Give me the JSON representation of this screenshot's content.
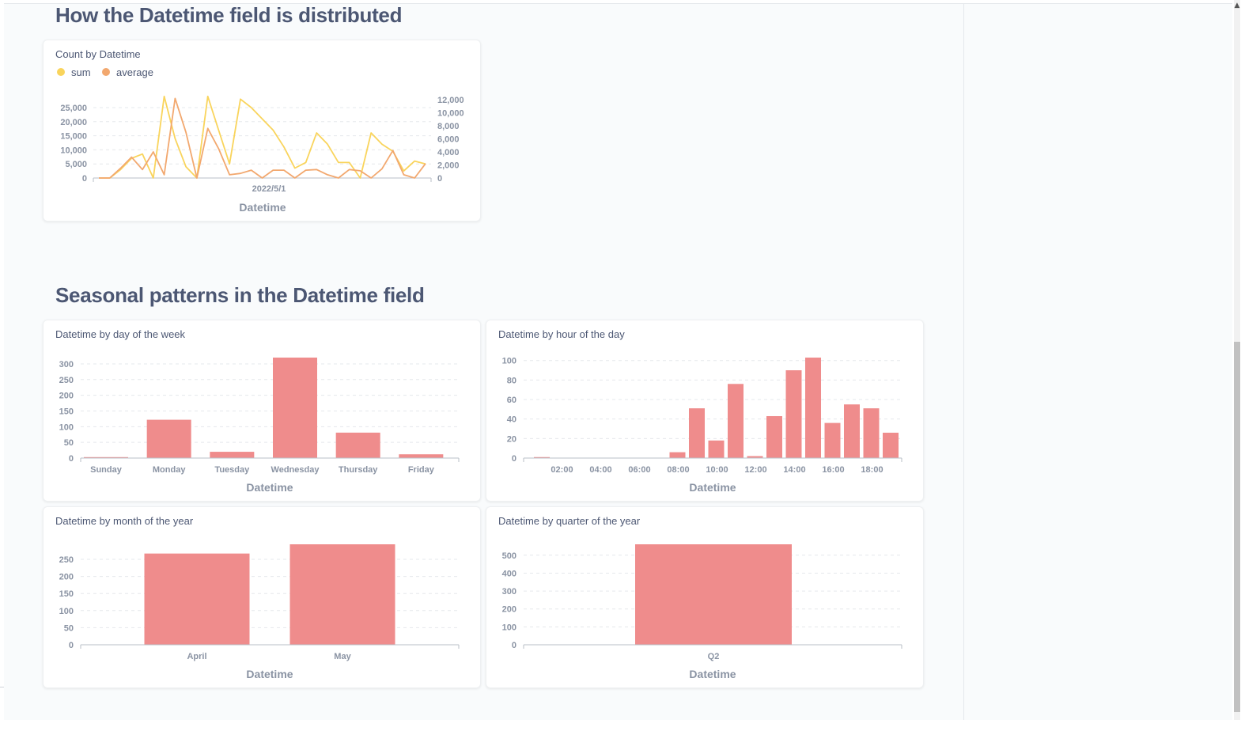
{
  "colors": {
    "bar": "#ef8c8c",
    "sum": "#f9d45c",
    "average": "#f2a86f"
  },
  "sections": {
    "distribution_title": "How the Datetime field is distributed",
    "seasonal_title": "Seasonal patterns in the Datetime field"
  },
  "cards": {
    "count_by_datetime": {
      "title": "Count by Datetime",
      "legend": [
        "sum",
        "average"
      ],
      "left_ticks": [
        "0",
        "5,000",
        "10,000",
        "15,000",
        "20,000",
        "25,000"
      ],
      "right_ticks": [
        "0",
        "2,000",
        "4,000",
        "6,000",
        "8,000",
        "10,000",
        "12,000"
      ],
      "x_tick": "2022/5/1",
      "x_title": "Datetime"
    },
    "day_of_week": {
      "title": "Datetime by day of the week",
      "y_ticks": [
        "0",
        "50",
        "100",
        "150",
        "200",
        "250",
        "300"
      ],
      "x_title": "Datetime"
    },
    "hour_of_day": {
      "title": "Datetime by hour of the day",
      "y_ticks": [
        "0",
        "20",
        "40",
        "60",
        "80",
        "100"
      ],
      "x_title": "Datetime"
    },
    "month_of_year": {
      "title": "Datetime by month of the year",
      "y_ticks": [
        "0",
        "50",
        "100",
        "150",
        "200",
        "250"
      ],
      "x_title": "Datetime"
    },
    "quarter_of_year": {
      "title": "Datetime by quarter of the year",
      "y_ticks": [
        "0",
        "100",
        "200",
        "300",
        "400",
        "500"
      ],
      "x_title": "Datetime"
    }
  },
  "chart_data": [
    {
      "type": "line",
      "title": "Count by Datetime",
      "xlabel": "Datetime",
      "x_tick_labels": [
        "2022/5/1"
      ],
      "series": [
        {
          "name": "sum",
          "axis": "left",
          "values": [
            0,
            0,
            3000,
            7000,
            8500,
            0,
            29000,
            14000,
            4000,
            0,
            29000,
            17000,
            5000,
            28000,
            25000,
            21000,
            17000,
            11000,
            3500,
            5500,
            16000,
            12000,
            5500,
            5500,
            0,
            16000,
            12000,
            9500,
            2500,
            6000,
            5000
          ]
        },
        {
          "name": "average",
          "axis": "right",
          "values": [
            0,
            0,
            1500,
            3200,
            1300,
            4000,
            500,
            12200,
            7000,
            0,
            7600,
            4500,
            500,
            700,
            1200,
            0,
            1200,
            1200,
            0,
            1200,
            1300,
            500,
            0,
            1300,
            1100,
            0,
            1400,
            4200,
            500,
            0,
            2200
          ]
        }
      ],
      "ylim_left": [
        0,
        25000
      ],
      "ylim_right": [
        0,
        12000
      ]
    },
    {
      "type": "bar",
      "title": "Datetime by day of the week",
      "xlabel": "Datetime",
      "categories": [
        "Sunday",
        "Monday",
        "Tuesday",
        "Wednesday",
        "Thursday",
        "Friday"
      ],
      "values": [
        3,
        122,
        20,
        320,
        81,
        12
      ],
      "ylim": [
        0,
        320
      ]
    },
    {
      "type": "bar",
      "title": "Datetime by hour of the day",
      "xlabel": "Datetime",
      "hours": [
        1,
        2,
        3,
        4,
        5,
        6,
        7,
        8,
        9,
        10,
        11,
        12,
        13,
        14,
        15,
        16,
        17,
        18,
        19
      ],
      "x_tick_labels": [
        "02:00",
        "04:00",
        "06:00",
        "08:00",
        "10:00",
        "12:00",
        "14:00",
        "16:00",
        "18:00"
      ],
      "values": [
        1,
        0,
        0,
        0,
        0,
        0,
        0,
        6,
        51,
        18,
        76,
        2,
        43,
        90,
        103,
        36,
        55,
        51,
        26
      ],
      "ylim": [
        0,
        103
      ]
    },
    {
      "type": "bar",
      "title": "Datetime by month of the year",
      "xlabel": "Datetime",
      "categories": [
        "April",
        "May"
      ],
      "values": [
        267,
        294
      ],
      "ylim": [
        0,
        294
      ]
    },
    {
      "type": "bar",
      "title": "Datetime by quarter of the year",
      "xlabel": "Datetime",
      "categories": [
        "Q2"
      ],
      "values": [
        561
      ],
      "ylim": [
        0,
        561
      ]
    }
  ]
}
